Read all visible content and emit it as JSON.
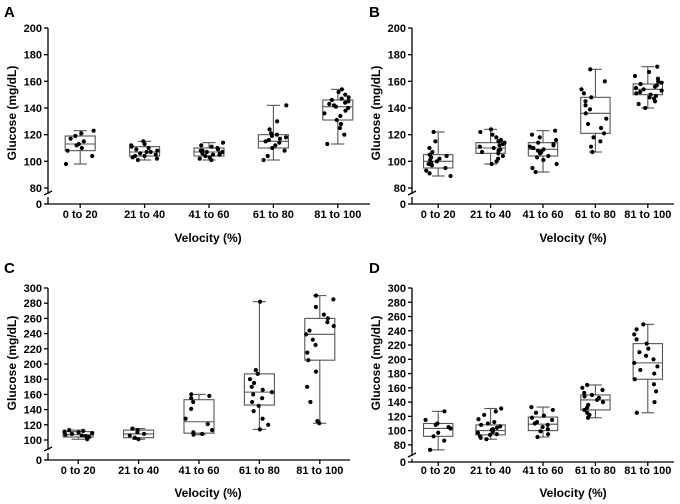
{
  "chart_data": [
    {
      "id": "A",
      "letter": "A",
      "type": "box",
      "xlabel": "Velocity (%)",
      "ylabel": "Glucose (mg/dL)",
      "categories": [
        "0 to 20",
        "21 to 40",
        "41 to 60",
        "61 to 80",
        "81 to 100"
      ],
      "yticks": [
        80,
        100,
        120,
        140,
        160,
        180,
        200
      ],
      "ybreak_zero": 0,
      "ylim": [
        80,
        200
      ],
      "boxes": [
        {
          "category": "0 to 20",
          "min": 98,
          "q1": 108,
          "median": 113,
          "q3": 119,
          "max": 123
        },
        {
          "category": "21 to 40",
          "min": 101,
          "q1": 104,
          "median": 107,
          "q3": 111,
          "max": 115
        },
        {
          "category": "41 to 60",
          "min": 101,
          "q1": 104,
          "median": 107,
          "q3": 110,
          "max": 114
        },
        {
          "category": "61 to 80",
          "min": 101,
          "q1": 110,
          "median": 115,
          "q3": 120,
          "max": 142
        },
        {
          "category": "81 to 100",
          "min": 113,
          "q1": 131,
          "median": 141,
          "q3": 146,
          "max": 154
        }
      ],
      "points": [
        [
          98,
          104,
          108,
          110,
          112,
          113,
          115,
          117,
          119,
          121,
          123
        ],
        [
          101,
          102,
          103,
          104,
          104,
          105,
          106,
          107,
          107,
          108,
          109,
          110,
          111,
          112,
          113,
          115
        ],
        [
          101,
          102,
          103,
          104,
          105,
          105,
          106,
          106,
          107,
          107,
          108,
          108,
          109,
          110,
          111,
          112,
          114
        ],
        [
          101,
          104,
          108,
          110,
          112,
          114,
          115,
          116,
          117,
          118,
          119,
          120,
          121,
          124,
          130,
          142
        ],
        [
          113,
          120,
          125,
          128,
          131,
          134,
          136,
          138,
          140,
          141,
          142,
          143,
          144,
          145,
          146,
          147,
          148,
          150,
          152,
          154
        ]
      ]
    },
    {
      "id": "B",
      "letter": "B",
      "type": "box",
      "xlabel": "Velocity (%)",
      "ylabel": "Glucose (mg/dL)",
      "categories": [
        "0 to 20",
        "21 to 40",
        "41 to 60",
        "61 to 80",
        "81 to 100"
      ],
      "yticks": [
        80,
        100,
        120,
        140,
        160,
        180,
        200
      ],
      "ybreak_zero": 0,
      "ylim": [
        80,
        200
      ],
      "boxes": [
        {
          "category": "0 to 20",
          "min": 89,
          "q1": 95,
          "median": 100,
          "q3": 105,
          "max": 122
        },
        {
          "category": "21 to 40",
          "min": 98,
          "q1": 106,
          "median": 110,
          "q3": 114,
          "max": 124
        },
        {
          "category": "41 to 60",
          "min": 92,
          "q1": 104,
          "median": 109,
          "q3": 114,
          "max": 123
        },
        {
          "category": "61 to 80",
          "min": 107,
          "q1": 121,
          "median": 136,
          "q3": 148,
          "max": 169
        },
        {
          "category": "81 to 100",
          "min": 140,
          "q1": 150,
          "median": 154,
          "q3": 158,
          "max": 171
        }
      ],
      "points": [
        [
          89,
          91,
          93,
          95,
          97,
          98,
          99,
          100,
          101,
          102,
          103,
          104,
          105,
          107,
          110,
          115,
          122
        ],
        [
          98,
          100,
          102,
          104,
          106,
          107,
          108,
          109,
          110,
          111,
          112,
          113,
          114,
          115,
          116,
          118,
          120,
          122,
          124
        ],
        [
          92,
          95,
          98,
          101,
          103,
          104,
          106,
          107,
          108,
          109,
          110,
          111,
          112,
          113,
          114,
          116,
          118,
          120,
          123
        ],
        [
          107,
          111,
          115,
          118,
          121,
          125,
          128,
          132,
          136,
          139,
          142,
          145,
          148,
          151,
          154,
          160,
          169
        ],
        [
          140,
          143,
          145,
          147,
          148,
          149,
          150,
          151,
          152,
          153,
          154,
          155,
          156,
          157,
          158,
          159,
          160,
          162,
          164,
          167,
          171
        ]
      ]
    },
    {
      "id": "C",
      "letter": "C",
      "type": "box",
      "xlabel": "Velocity (%)",
      "ylabel": "Glucose (mg/dL)",
      "categories": [
        "0 to 20",
        "21 to 40",
        "41 to 60",
        "61 to 80",
        "81 to 100"
      ],
      "yticks": [
        100,
        120,
        140,
        160,
        180,
        200,
        220,
        240,
        260,
        280,
        300
      ],
      "ybreak_zero": 0,
      "ylim": [
        100,
        300
      ],
      "boxes": [
        {
          "category": "0 to 20",
          "min": 101,
          "q1": 104,
          "median": 107,
          "q3": 111,
          "max": 113
        },
        {
          "category": "21 to 40",
          "min": 101,
          "q1": 103,
          "median": 108,
          "q3": 113,
          "max": 115
        },
        {
          "category": "41 to 60",
          "min": 107,
          "q1": 109,
          "median": 124,
          "q3": 153,
          "max": 160
        },
        {
          "category": "61 to 80",
          "min": 114,
          "q1": 146,
          "median": 163,
          "q3": 187,
          "max": 282
        },
        {
          "category": "81 to 100",
          "min": 122,
          "q1": 205,
          "median": 239,
          "q3": 260,
          "max": 290
        }
      ],
      "points": [
        [
          101,
          103,
          104,
          105,
          106,
          107,
          108,
          109,
          110,
          111,
          112,
          113
        ],
        [
          101,
          103,
          106,
          108,
          110,
          113,
          115
        ],
        [
          107,
          108,
          110,
          113,
          121,
          128,
          141,
          150,
          155,
          158,
          160
        ],
        [
          114,
          120,
          128,
          138,
          145,
          150,
          155,
          160,
          163,
          166,
          170,
          175,
          180,
          187,
          192,
          282
        ],
        [
          122,
          125,
          150,
          170,
          190,
          205,
          215,
          225,
          232,
          239,
          244,
          250,
          255,
          260,
          265,
          275,
          285,
          290
        ]
      ]
    },
    {
      "id": "D",
      "letter": "D",
      "type": "box",
      "xlabel": "Velocity (%)",
      "ylabel": "Glucose (mg/dL)",
      "categories": [
        "0 to 20",
        "21 to 40",
        "41 to 60",
        "61 to 80",
        "81 to 100"
      ],
      "yticks": [
        80,
        100,
        120,
        140,
        160,
        180,
        200,
        220,
        240,
        260,
        280,
        300
      ],
      "ybreak_zero": 0,
      "ylim": [
        70,
        300
      ],
      "boxes": [
        {
          "category": "0 to 20",
          "min": 73,
          "q1": 92,
          "median": 103,
          "q3": 110,
          "max": 127
        },
        {
          "category": "21 to 40",
          "min": 88,
          "q1": 94,
          "median": 100,
          "q3": 108,
          "max": 131
        },
        {
          "category": "41 to 60",
          "min": 91,
          "q1": 100,
          "median": 109,
          "q3": 119,
          "max": 133
        },
        {
          "category": "61 to 80",
          "min": 118,
          "q1": 129,
          "median": 143,
          "q3": 150,
          "max": 164
        },
        {
          "category": "81 to 100",
          "min": 125,
          "q1": 172,
          "median": 195,
          "q3": 222,
          "max": 249
        }
      ],
      "points": [
        [
          73,
          86,
          92,
          97,
          103,
          105,
          108,
          110,
          115,
          127
        ],
        [
          88,
          90,
          92,
          94,
          95,
          97,
          98,
          100,
          101,
          102,
          104,
          106,
          108,
          110,
          112,
          116,
          122,
          127,
          131
        ],
        [
          91,
          95,
          99,
          102,
          105,
          108,
          110,
          112,
          115,
          118,
          121,
          125,
          129,
          133
        ],
        [
          118,
          122,
          125,
          129,
          132,
          136,
          140,
          143,
          146,
          148,
          150,
          153,
          157,
          160,
          164
        ],
        [
          125,
          140,
          155,
          165,
          172,
          180,
          185,
          190,
          195,
          200,
          205,
          210,
          215,
          222,
          228,
          235,
          242,
          249
        ]
      ]
    }
  ]
}
